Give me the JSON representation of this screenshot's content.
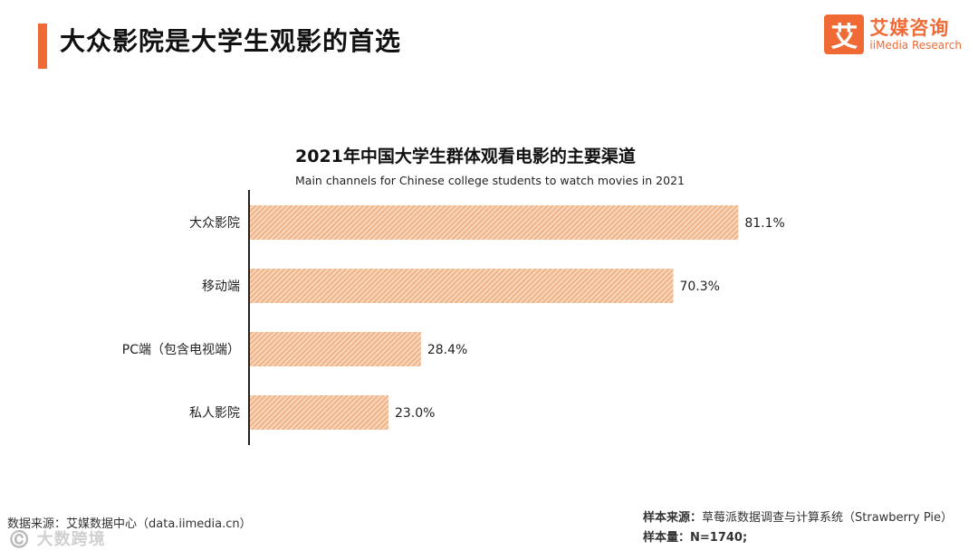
{
  "header": {
    "title": "大众影院是大学生观影的首选",
    "accent_color": "#ef6a35"
  },
  "brand": {
    "icon_char": "艾",
    "name_cn": "艾媒咨询",
    "name_en": "iiMedia Research",
    "icon": "iimedia-logo-icon"
  },
  "chart_data": {
    "type": "bar",
    "orientation": "horizontal",
    "title": "2021年中国大学生群体观看电影的主要渠道",
    "subtitle": "Main channels for Chinese college students to watch movies in 2021",
    "categories": [
      "大众影院",
      "移动端",
      "PC端（包含电视端）",
      "私人影院"
    ],
    "values": [
      81.1,
      70.3,
      28.4,
      23.0
    ],
    "labels": [
      "81.1%",
      "70.3%",
      "28.4%",
      "23.0%"
    ],
    "unit": "%",
    "xlim": [
      0,
      100
    ],
    "bar_color": "#f2b07e",
    "grid": false,
    "legend": "none"
  },
  "footer": {
    "source_left": "数据来源：艾媒数据中心（data.iimedia.cn）",
    "sample_source_label": "样本来源：",
    "sample_source": "草莓派数据调查与计算系统（Strawberry Pie）",
    "sample_size_label": "样本量：",
    "sample_size": "N=1740;"
  },
  "watermark": {
    "text": "©️ 大数跨境"
  }
}
